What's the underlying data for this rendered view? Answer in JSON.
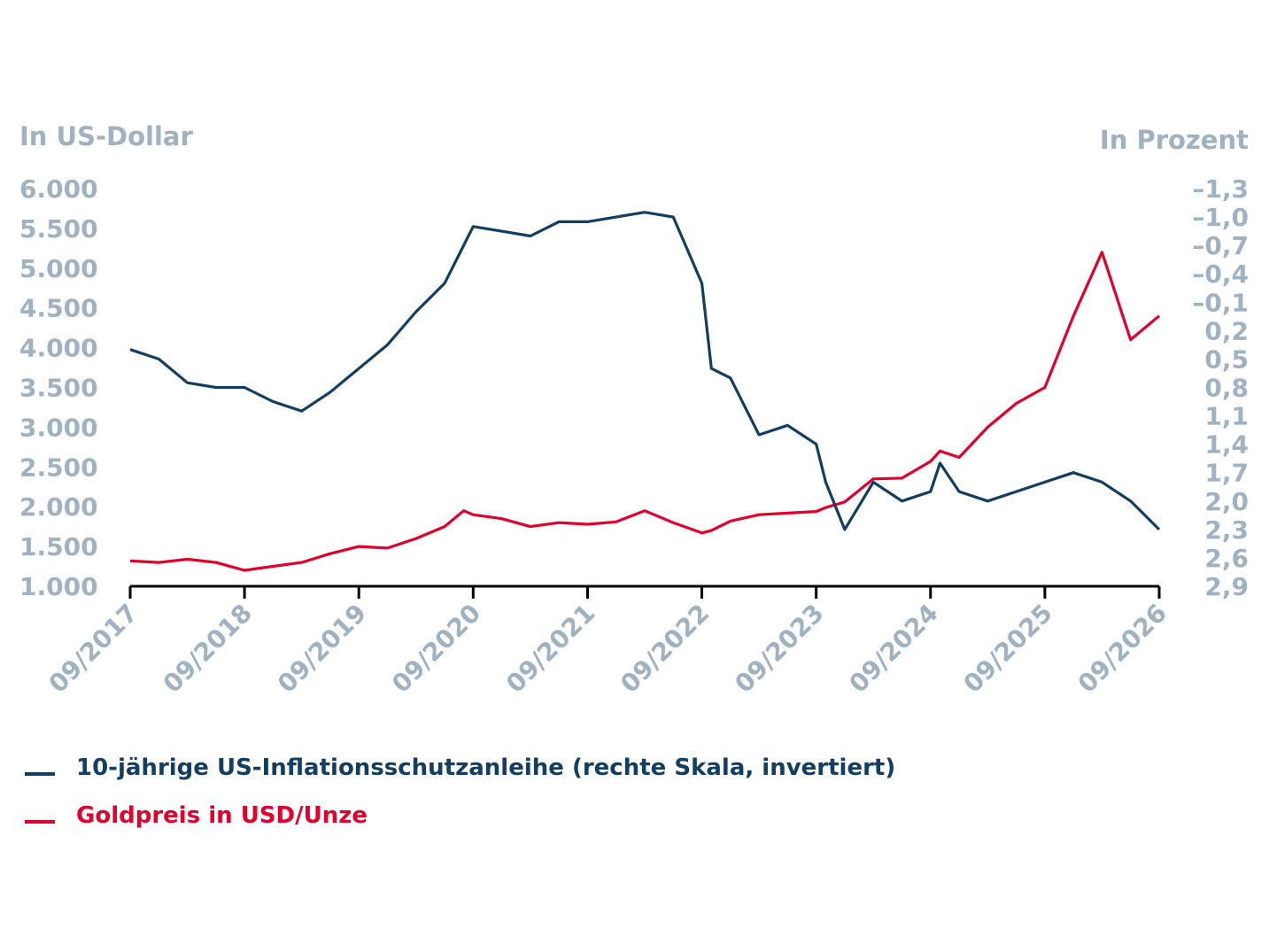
{
  "chart_data": {
    "type": "line",
    "left_axis_label": "In US-Dollar",
    "right_axis_label": "In Prozent",
    "left_ticks": [
      "6.000",
      "5.500",
      "5.000",
      "4.500",
      "4.000",
      "3.500",
      "3.000",
      "2.500",
      "2.000",
      "1.500",
      "1.000"
    ],
    "left_tick_values": [
      6000,
      5500,
      5000,
      4500,
      4000,
      3500,
      3000,
      2500,
      2000,
      1500,
      1000
    ],
    "right_ticks": [
      "–1,3",
      "–1,0",
      "–0,7",
      "–0,4",
      "–0,1",
      "0,2",
      "0,5",
      "0,8",
      "1,1",
      "1,4",
      "1,7",
      "2,0",
      "2,3",
      "2,6",
      "2,9"
    ],
    "right_tick_values": [
      -1.3,
      -1.0,
      -0.7,
      -0.4,
      -0.1,
      0.2,
      0.5,
      0.8,
      1.1,
      1.4,
      1.7,
      2.0,
      2.3,
      2.6,
      2.9
    ],
    "x_ticks": [
      "09/2017",
      "09/2018",
      "09/2019",
      "09/2020",
      "09/2021",
      "09/2022",
      "09/2023",
      "09/2024",
      "09/2025",
      "09/2026"
    ],
    "ylim_left": [
      1000,
      6000
    ],
    "ylim_right": [
      -1.3,
      2.9
    ],
    "right_axis_inverted": true,
    "colors": {
      "tips": "#123e63",
      "gold": "#e3002a",
      "axis": "#000000",
      "ticks": "#9fb2c2"
    },
    "series": [
      {
        "name": "10-jährige US-Inflationsschutzanleihe (rechte Skala, invertiert)",
        "axis": "right",
        "color": "#123e63",
        "x": [
          "2017-09",
          "2017-12",
          "2018-03",
          "2018-06",
          "2018-09",
          "2018-12",
          "2019-03",
          "2019-06",
          "2019-09",
          "2019-12",
          "2020-03",
          "2020-06",
          "2020-08",
          "2020-09",
          "2020-12",
          "2021-03",
          "2021-06",
          "2021-09",
          "2021-12",
          "2022-03",
          "2022-06",
          "2022-09",
          "2022-10",
          "2022-12",
          "2023-03",
          "2023-06",
          "2023-09",
          "2023-10",
          "2023-12",
          "2024-03",
          "2024-06",
          "2024-09",
          "2024-10",
          "2024-12",
          "2025-03",
          "2025-06",
          "2025-09",
          "2025-12",
          "2026-03",
          "2026-06",
          "2026-09"
        ],
        "values": [
          0.4,
          0.5,
          0.75,
          0.8,
          0.8,
          0.95,
          1.05,
          0.85,
          0.6,
          0.35,
          0.0,
          -0.3,
          -0.7,
          -0.9,
          -0.85,
          -0.8,
          -0.95,
          -0.95,
          -1.0,
          -1.05,
          -1.0,
          -0.3,
          0.6,
          0.7,
          1.3,
          1.2,
          1.4,
          1.8,
          2.3,
          1.8,
          2.0,
          1.9,
          1.6,
          1.9,
          2.0,
          1.9,
          1.8,
          1.7,
          1.8,
          2.0,
          2.3
        ]
      },
      {
        "name": "Goldpreis in USD/Unze",
        "axis": "left",
        "color": "#e3002a",
        "x": [
          "2017-09",
          "2017-12",
          "2018-03",
          "2018-06",
          "2018-09",
          "2018-12",
          "2019-03",
          "2019-06",
          "2019-09",
          "2019-12",
          "2020-03",
          "2020-06",
          "2020-08",
          "2020-09",
          "2020-12",
          "2021-03",
          "2021-06",
          "2021-09",
          "2021-12",
          "2022-03",
          "2022-06",
          "2022-09",
          "2022-10",
          "2022-12",
          "2023-03",
          "2023-06",
          "2023-09",
          "2023-10",
          "2023-12",
          "2024-03",
          "2024-06",
          "2024-09",
          "2024-10",
          "2024-12",
          "2025-03",
          "2025-06",
          "2025-09",
          "2025-12",
          "2026-03",
          "2026-06",
          "2026-09"
        ],
        "values": [
          1320,
          1300,
          1340,
          1300,
          1200,
          1250,
          1300,
          1410,
          1500,
          1480,
          1600,
          1750,
          1950,
          1900,
          1850,
          1750,
          1800,
          1780,
          1810,
          1950,
          1800,
          1670,
          1700,
          1820,
          1900,
          1920,
          1940,
          1990,
          2060,
          2350,
          2360,
          2570,
          2700,
          2620,
          3000,
          3300,
          3500,
          4400,
          5200,
          4100,
          4400
        ]
      }
    ]
  }
}
